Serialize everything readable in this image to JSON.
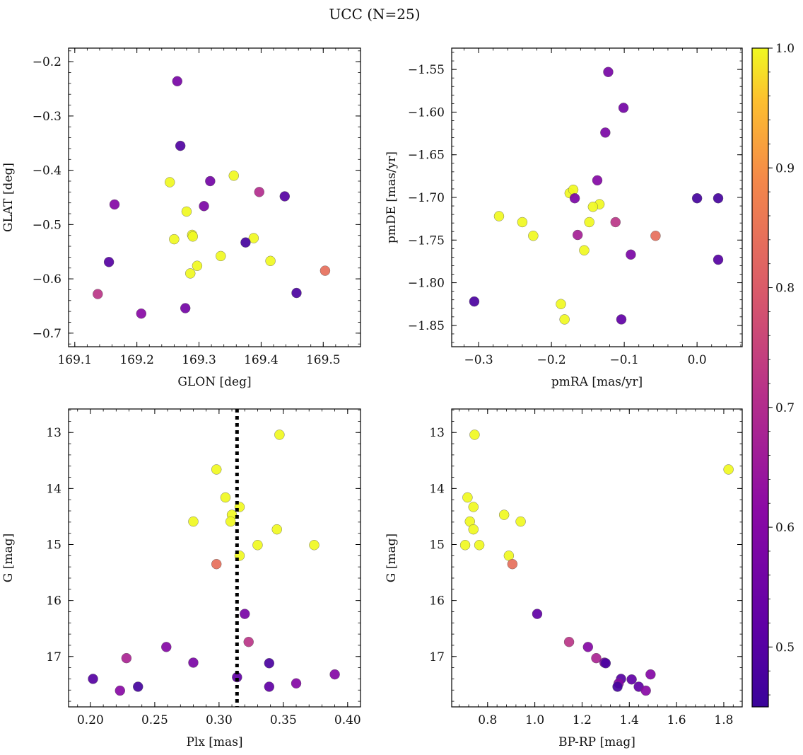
{
  "figure": {
    "title": "UCC (N=25)",
    "colorbar": {
      "range": [
        0.45,
        1.0
      ],
      "ticks": [
        0.5,
        0.6,
        0.7,
        0.8,
        0.9,
        1.0
      ],
      "tick_labels": [
        "0.5",
        "0.6",
        "0.7",
        "0.8",
        "0.9",
        "1.0"
      ],
      "colormap": "plasma"
    }
  },
  "chart_data": [
    {
      "type": "scatter",
      "xlabel": "GLON [deg]",
      "ylabel": "GLAT [deg]",
      "xlim": [
        169.09,
        169.56
      ],
      "ylim": [
        -0.725,
        -0.175
      ],
      "xticks": [
        169.1,
        169.2,
        169.3,
        169.4,
        169.5
      ],
      "xtick_labels": [
        "169.1",
        "169.2",
        "169.3",
        "169.4",
        "169.5"
      ],
      "yticks": [
        -0.2,
        -0.3,
        -0.4,
        -0.5,
        -0.6,
        -0.7
      ],
      "ytick_labels": [
        "−0.2",
        "−0.3",
        "−0.4",
        "−0.5",
        "−0.6",
        "−0.7"
      ],
      "points": [
        {
          "x": 169.265,
          "y": -0.236,
          "c": 0.57
        },
        {
          "x": 169.27,
          "y": -0.355,
          "c": 0.49
        },
        {
          "x": 169.356,
          "y": -0.41,
          "c": 1.0
        },
        {
          "x": 169.253,
          "y": -0.422,
          "c": 1.0
        },
        {
          "x": 169.318,
          "y": -0.42,
          "c": 0.56
        },
        {
          "x": 169.397,
          "y": -0.44,
          "c": 0.7
        },
        {
          "x": 169.438,
          "y": -0.448,
          "c": 0.5
        },
        {
          "x": 169.164,
          "y": -0.463,
          "c": 0.6
        },
        {
          "x": 169.308,
          "y": -0.466,
          "c": 0.58
        },
        {
          "x": 169.28,
          "y": -0.476,
          "c": 1.0
        },
        {
          "x": 169.289,
          "y": -0.519,
          "c": 1.0
        },
        {
          "x": 169.29,
          "y": -0.522,
          "c": 1.0
        },
        {
          "x": 169.388,
          "y": -0.525,
          "c": 1.0
        },
        {
          "x": 169.26,
          "y": -0.527,
          "c": 1.0
        },
        {
          "x": 169.375,
          "y": -0.533,
          "c": 0.47
        },
        {
          "x": 169.335,
          "y": -0.558,
          "c": 1.0
        },
        {
          "x": 169.415,
          "y": -0.567,
          "c": 1.0
        },
        {
          "x": 169.155,
          "y": -0.569,
          "c": 0.5
        },
        {
          "x": 169.297,
          "y": -0.576,
          "c": 1.0
        },
        {
          "x": 169.286,
          "y": -0.59,
          "c": 1.0
        },
        {
          "x": 169.503,
          "y": -0.585,
          "c": 0.84
        },
        {
          "x": 169.457,
          "y": -0.626,
          "c": 0.48
        },
        {
          "x": 169.137,
          "y": -0.628,
          "c": 0.72
        },
        {
          "x": 169.278,
          "y": -0.654,
          "c": 0.56
        },
        {
          "x": 169.207,
          "y": -0.664,
          "c": 0.61
        }
      ]
    },
    {
      "type": "scatter",
      "xlabel": "pmRA [mas/yr]",
      "ylabel": "pmDE [mas/yr]",
      "xlim": [
        -0.337,
        0.062
      ],
      "ylim": [
        -1.875,
        -1.525
      ],
      "xticks": [
        -0.3,
        -0.2,
        -0.1,
        0.0
      ],
      "xtick_labels": [
        "−0.3",
        "−0.2",
        "−0.1",
        "0.0"
      ],
      "yticks": [
        -1.55,
        -1.6,
        -1.65,
        -1.7,
        -1.75,
        -1.8,
        -1.85
      ],
      "ytick_labels": [
        "−1.55",
        "−1.60",
        "−1.65",
        "−1.70",
        "−1.75",
        "−1.80",
        "−1.85"
      ],
      "points": [
        {
          "x": -0.122,
          "y": -1.553,
          "c": 0.57
        },
        {
          "x": -0.101,
          "y": -1.595,
          "c": 0.56
        },
        {
          "x": -0.126,
          "y": -1.624,
          "c": 0.58
        },
        {
          "x": -0.137,
          "y": -1.68,
          "c": 0.6
        },
        {
          "x": -0.175,
          "y": -1.695,
          "c": 1.0
        },
        {
          "x": -0.17,
          "y": -1.691,
          "c": 1.0
        },
        {
          "x": -0.168,
          "y": -1.701,
          "c": 0.58
        },
        {
          "x": 0.0,
          "y": -1.701,
          "c": 0.47
        },
        {
          "x": 0.029,
          "y": -1.701,
          "c": 0.47
        },
        {
          "x": -0.134,
          "y": -1.708,
          "c": 1.0
        },
        {
          "x": -0.143,
          "y": -1.711,
          "c": 1.0
        },
        {
          "x": -0.272,
          "y": -1.722,
          "c": 1.0
        },
        {
          "x": -0.24,
          "y": -1.729,
          "c": 1.0
        },
        {
          "x": -0.148,
          "y": -1.729,
          "c": 1.0
        },
        {
          "x": -0.112,
          "y": -1.729,
          "c": 0.72
        },
        {
          "x": -0.164,
          "y": -1.744,
          "c": 0.67
        },
        {
          "x": -0.225,
          "y": -1.745,
          "c": 1.0
        },
        {
          "x": -0.057,
          "y": -1.745,
          "c": 0.84
        },
        {
          "x": -0.155,
          "y": -1.762,
          "c": 1.0
        },
        {
          "x": -0.091,
          "y": -1.767,
          "c": 0.58
        },
        {
          "x": 0.029,
          "y": -1.773,
          "c": 0.5
        },
        {
          "x": -0.306,
          "y": -1.822,
          "c": 0.48
        },
        {
          "x": -0.187,
          "y": -1.825,
          "c": 1.0
        },
        {
          "x": -0.182,
          "y": -1.843,
          "c": 1.0
        },
        {
          "x": -0.104,
          "y": -1.843,
          "c": 0.52
        }
      ]
    },
    {
      "type": "scatter",
      "xlabel": "Plx [mas]",
      "ylabel": "G [mag]",
      "xlim": [
        0.183,
        0.41
      ],
      "ylim": [
        17.9,
        12.58
      ],
      "xticks": [
        0.2,
        0.25,
        0.3,
        0.35,
        0.4
      ],
      "xtick_labels": [
        "0.20",
        "0.25",
        "0.30",
        "0.35",
        "0.40"
      ],
      "yticks": [
        13,
        14,
        15,
        16,
        17
      ],
      "ytick_labels": [
        "13",
        "14",
        "15",
        "16",
        "17"
      ],
      "vline": {
        "x": 0.314,
        "style": "dotted"
      },
      "points": [
        {
          "x": 0.347,
          "y": 13.04,
          "c": 1.0
        },
        {
          "x": 0.298,
          "y": 13.66,
          "c": 1.0
        },
        {
          "x": 0.305,
          "y": 14.16,
          "c": 1.0
        },
        {
          "x": 0.316,
          "y": 14.33,
          "c": 1.0
        },
        {
          "x": 0.31,
          "y": 14.47,
          "c": 1.0
        },
        {
          "x": 0.309,
          "y": 14.59,
          "c": 1.0
        },
        {
          "x": 0.28,
          "y": 14.59,
          "c": 1.0
        },
        {
          "x": 0.345,
          "y": 14.73,
          "c": 1.0
        },
        {
          "x": 0.33,
          "y": 15.01,
          "c": 1.0
        },
        {
          "x": 0.374,
          "y": 15.01,
          "c": 1.0
        },
        {
          "x": 0.316,
          "y": 15.2,
          "c": 1.0
        },
        {
          "x": 0.298,
          "y": 15.35,
          "c": 0.84
        },
        {
          "x": 0.32,
          "y": 16.24,
          "c": 0.57
        },
        {
          "x": 0.323,
          "y": 16.74,
          "c": 0.72
        },
        {
          "x": 0.259,
          "y": 16.83,
          "c": 0.6
        },
        {
          "x": 0.228,
          "y": 17.03,
          "c": 0.68
        },
        {
          "x": 0.28,
          "y": 17.11,
          "c": 0.58
        },
        {
          "x": 0.339,
          "y": 17.12,
          "c": 0.48
        },
        {
          "x": 0.39,
          "y": 17.32,
          "c": 0.6
        },
        {
          "x": 0.202,
          "y": 17.4,
          "c": 0.5
        },
        {
          "x": 0.314,
          "y": 17.37,
          "c": 0.52
        },
        {
          "x": 0.36,
          "y": 17.48,
          "c": 0.6
        },
        {
          "x": 0.237,
          "y": 17.54,
          "c": 0.47
        },
        {
          "x": 0.339,
          "y": 17.54,
          "c": 0.52
        },
        {
          "x": 0.223,
          "y": 17.61,
          "c": 0.61
        }
      ]
    },
    {
      "type": "scatter",
      "xlabel": "BP-RP [mag]",
      "ylabel": "G [mag]",
      "xlim": [
        0.648,
        1.878
      ],
      "ylim": [
        17.9,
        12.58
      ],
      "xticks": [
        0.8,
        1.0,
        1.2,
        1.4,
        1.6,
        1.8
      ],
      "xtick_labels": [
        "0.8",
        "1.0",
        "1.2",
        "1.4",
        "1.6",
        "1.8"
      ],
      "yticks": [
        13,
        14,
        15,
        16,
        17
      ],
      "ytick_labels": [
        "13",
        "14",
        "15",
        "16",
        "17"
      ],
      "points": [
        {
          "x": 0.745,
          "y": 13.04,
          "c": 1.0
        },
        {
          "x": 1.82,
          "y": 13.66,
          "c": 1.0
        },
        {
          "x": 0.715,
          "y": 14.16,
          "c": 1.0
        },
        {
          "x": 0.74,
          "y": 14.33,
          "c": 1.0
        },
        {
          "x": 0.87,
          "y": 14.47,
          "c": 1.0
        },
        {
          "x": 0.725,
          "y": 14.59,
          "c": 1.0
        },
        {
          "x": 0.94,
          "y": 14.59,
          "c": 1.0
        },
        {
          "x": 0.74,
          "y": 14.73,
          "c": 1.0
        },
        {
          "x": 0.705,
          "y": 15.01,
          "c": 1.0
        },
        {
          "x": 0.765,
          "y": 15.01,
          "c": 1.0
        },
        {
          "x": 0.89,
          "y": 15.2,
          "c": 1.0
        },
        {
          "x": 0.905,
          "y": 15.35,
          "c": 0.84
        },
        {
          "x": 1.01,
          "y": 16.24,
          "c": 0.52
        },
        {
          "x": 1.145,
          "y": 16.74,
          "c": 0.72
        },
        {
          "x": 1.225,
          "y": 16.83,
          "c": 0.6
        },
        {
          "x": 1.26,
          "y": 17.03,
          "c": 0.68
        },
        {
          "x": 1.295,
          "y": 17.11,
          "c": 0.58
        },
        {
          "x": 1.3,
          "y": 17.12,
          "c": 0.48
        },
        {
          "x": 1.49,
          "y": 17.32,
          "c": 0.6
        },
        {
          "x": 1.365,
          "y": 17.4,
          "c": 0.5
        },
        {
          "x": 1.41,
          "y": 17.41,
          "c": 0.52
        },
        {
          "x": 1.355,
          "y": 17.48,
          "c": 0.6
        },
        {
          "x": 1.35,
          "y": 17.54,
          "c": 0.47
        },
        {
          "x": 1.44,
          "y": 17.54,
          "c": 0.52
        },
        {
          "x": 1.47,
          "y": 17.61,
          "c": 0.61
        }
      ]
    }
  ]
}
